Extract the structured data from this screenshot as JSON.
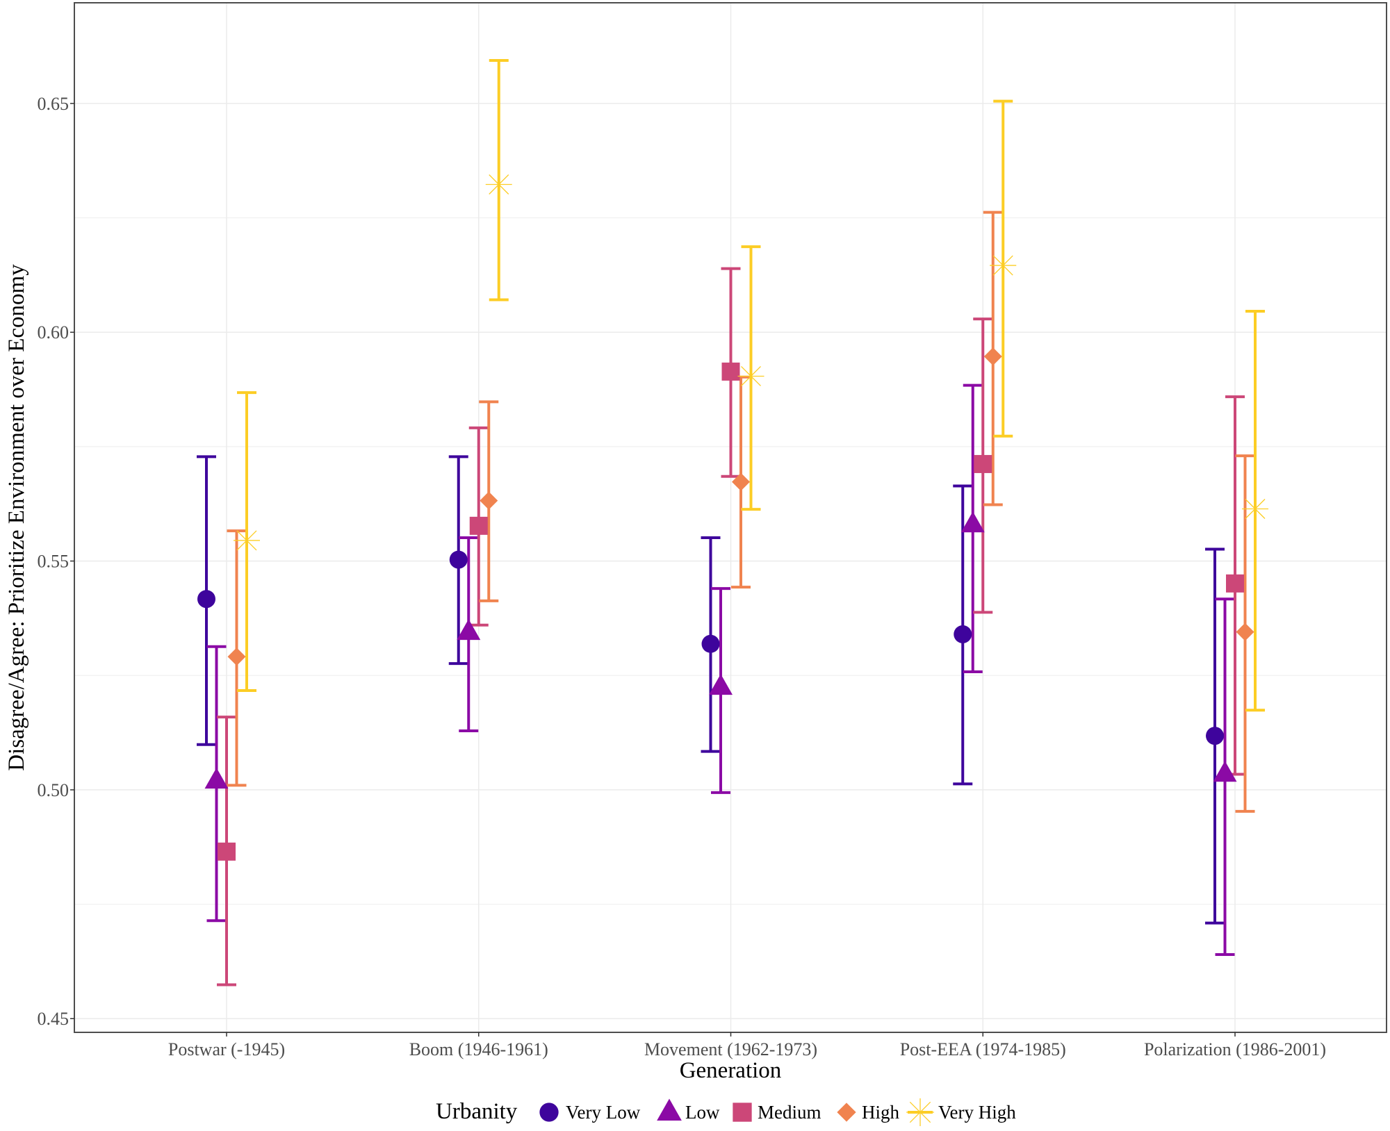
{
  "chart_data": {
    "type": "scatter",
    "subtype": "point-with-error-bars",
    "title": "",
    "xlabel": "Generation",
    "ylabel": "Disagree/Agree: Prioritize Environment over Economy",
    "ylim": [
      0.447,
      0.672
    ],
    "yticks": [
      0.45,
      0.5,
      0.55,
      0.6,
      0.65
    ],
    "ytick_labels": [
      "0.45",
      "0.50",
      "0.55",
      "0.60",
      "0.65"
    ],
    "grid": true,
    "categories": [
      "Postwar (-1945)",
      "Boom (1946-1961)",
      "Movement (1962-1973)",
      "Post-EEA (1974-1985)",
      "Polarization (1986-2001)"
    ],
    "legend": {
      "title": "Urbanity",
      "position": "bottom"
    },
    "series": [
      {
        "name": "Very Low",
        "shape": "circle",
        "color": "#3e049c",
        "values": [
          0.5417,
          0.5503,
          0.5319,
          0.534,
          0.5118
        ],
        "lower": [
          0.5099,
          0.5276,
          0.5084,
          0.5013,
          0.4709
        ],
        "upper": [
          0.5728,
          0.5728,
          0.5551,
          0.5664,
          0.5526
        ]
      },
      {
        "name": "Low",
        "shape": "triangle",
        "color": "#8b0aa5",
        "values": [
          0.502,
          0.5345,
          0.5225,
          0.558,
          0.5035
        ],
        "lower": [
          0.4714,
          0.5129,
          0.4994,
          0.5258,
          0.464
        ],
        "upper": [
          0.5313,
          0.5551,
          0.544,
          0.5884,
          0.5417
        ]
      },
      {
        "name": "Medium",
        "shape": "square",
        "color": "#cc4778",
        "values": [
          0.4865,
          0.5577,
          0.5914,
          0.5712,
          0.5451
        ],
        "lower": [
          0.4574,
          0.536,
          0.5685,
          0.5388,
          0.5034
        ],
        "upper": [
          0.5159,
          0.5791,
          0.6139,
          0.6029,
          0.5859
        ]
      },
      {
        "name": "High",
        "shape": "diamond",
        "color": "#f0834f",
        "values": [
          0.5291,
          0.5632,
          0.5673,
          0.5947,
          0.5345
        ],
        "lower": [
          0.501,
          0.5413,
          0.5443,
          0.5623,
          0.4953
        ],
        "upper": [
          0.5566,
          0.5848,
          0.5902,
          0.6262,
          0.573
        ]
      },
      {
        "name": "Very High",
        "shape": "asterisk",
        "color": "#fccd25",
        "values": [
          0.5545,
          0.6323,
          0.5904,
          0.6146,
          0.5614
        ],
        "lower": [
          0.5217,
          0.6071,
          0.5613,
          0.5773,
          0.5174
        ],
        "upper": [
          0.5868,
          0.6594,
          0.6187,
          0.6505,
          0.6046
        ]
      }
    ]
  }
}
